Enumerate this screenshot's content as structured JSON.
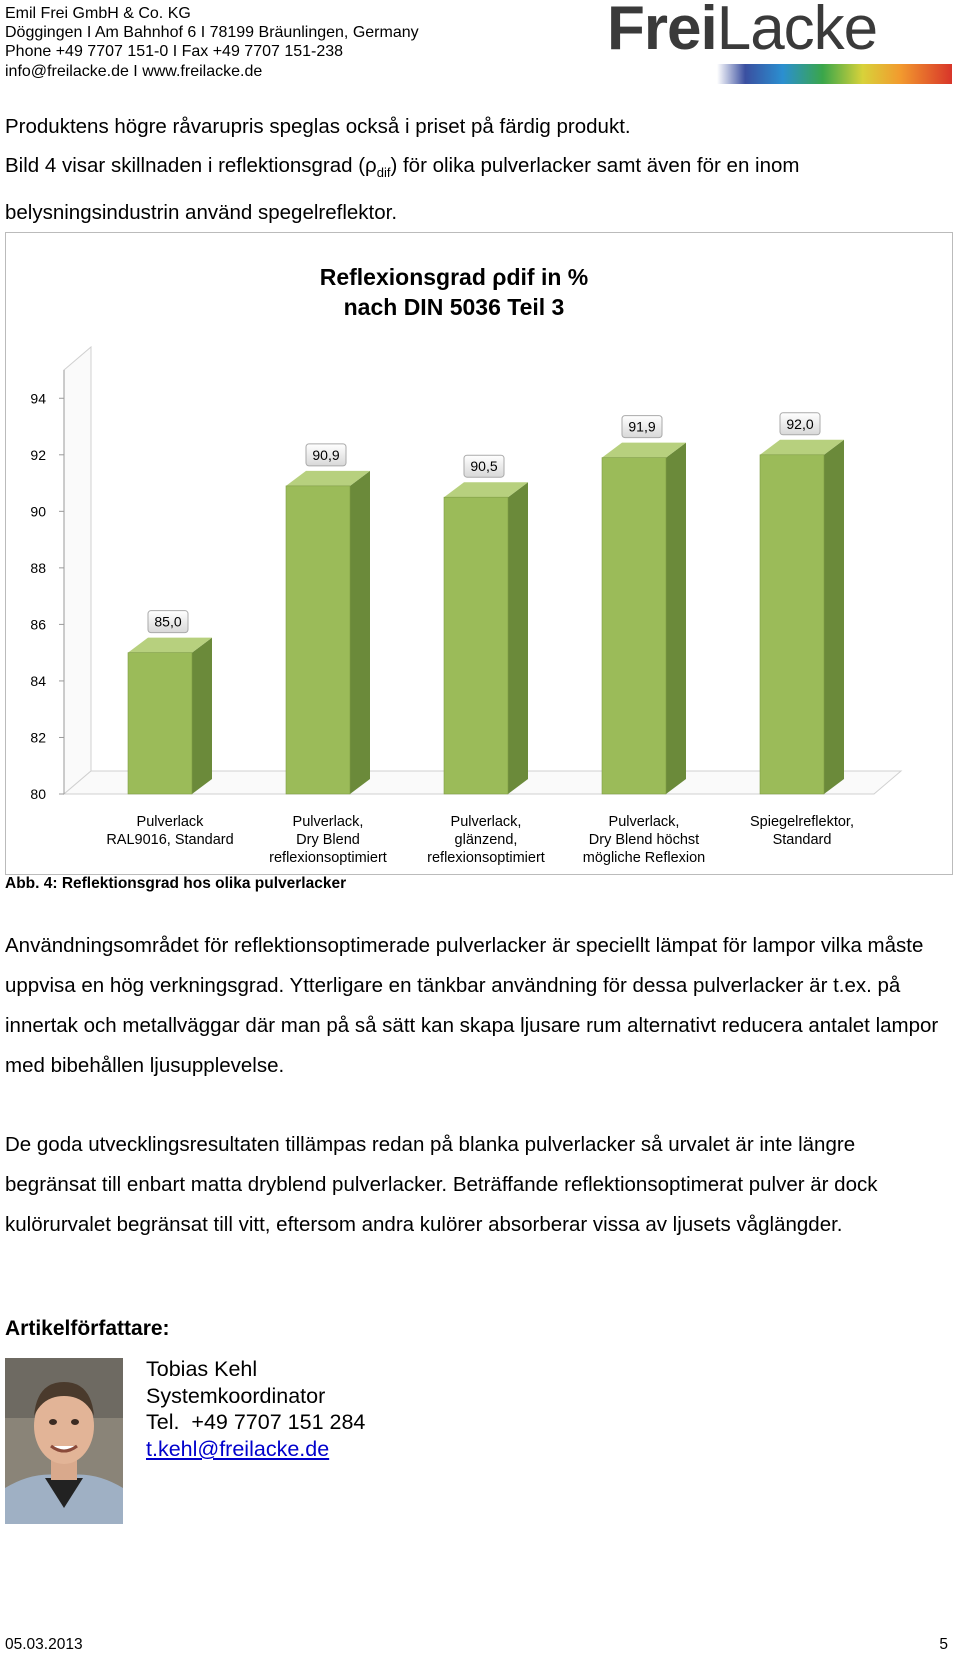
{
  "header": {
    "company": "Emil Frei GmbH & Co. KG",
    "address": "Döggingen I Am Bahnhof 6 I 78199 Bräunlingen, Germany",
    "phone": "Phone +49 7707 151-0 I Fax +49 7707 151-238",
    "web": "info@freilacke.de I www.freilacke.de",
    "logo_bold": "Frei",
    "logo_light": "Lacke"
  },
  "intro": {
    "line1": "Produktens högre råvarupris speglas också i priset på färdig produkt.",
    "before": "Bild 4 visar skillnaden i reflektionsgrad (ρ",
    "sub": "dif",
    "after": ") för olika pulverlacker samt även för en inom belysningsindustrin använd spegelreflektor."
  },
  "chart_data": {
    "type": "bar3d",
    "title": "Reflexionsgrad ρdif in %",
    "subtitle": "nach DIN 5036 Teil 3",
    "categories": [
      [
        "Pulverlack",
        "RAL9016, Standard"
      ],
      [
        "Pulverlack,",
        "Dry Blend",
        "reflexionsoptimiert"
      ],
      [
        "Pulverlack,",
        "glänzend,",
        "reflexionsoptimiert"
      ],
      [
        "Pulverlack,",
        "Dry Blend höchst",
        "mögliche Reflexion"
      ],
      [
        "Spiegelreflektor,",
        "Standard"
      ]
    ],
    "values": [
      85.0,
      90.9,
      90.5,
      91.9,
      92.0
    ],
    "value_labels": [
      "85,0",
      "90,9",
      "90,5",
      "91,9",
      "92,0"
    ],
    "color": "#9bbb59",
    "ylim": [
      80,
      95
    ],
    "yticks": [
      80,
      82,
      84,
      86,
      88,
      90,
      92,
      94
    ],
    "grid": false
  },
  "caption": "Abb. 4: Reflektionsgrad hos olika pulverlacker",
  "paragraphs": [
    "Användningsområdet för reflektionsoptimerade pulverlacker är speciellt lämpat för lampor vilka måste uppvisa en hög verkningsgrad. Ytterligare en tänkbar användning för dessa pulverlacker är t.ex. på innertak och metallväggar där man på så sätt kan skapa ljusare rum alternativt reducera antalet lampor med bibehållen ljusupplevelse.",
    "De goda utvecklingsresultaten tillämpas redan på blanka pulverlacker så urvalet är inte längre begränsat till enbart matta dryblend pulverlacker. Beträffande reflektionsoptimerat pulver är dock kulörurvalet begränsat till vitt, eftersom andra kulörer absorberar vissa av ljusets våglängder."
  ],
  "author": {
    "heading": "Artikelförfattare:",
    "name": "Tobias Kehl",
    "role": "Systemkoordinator",
    "phone": "Tel.  +49 7707 151 284",
    "email": "t.kehl@freilacke.de"
  },
  "footer": {
    "date": "05.03.2013",
    "page": "5"
  }
}
